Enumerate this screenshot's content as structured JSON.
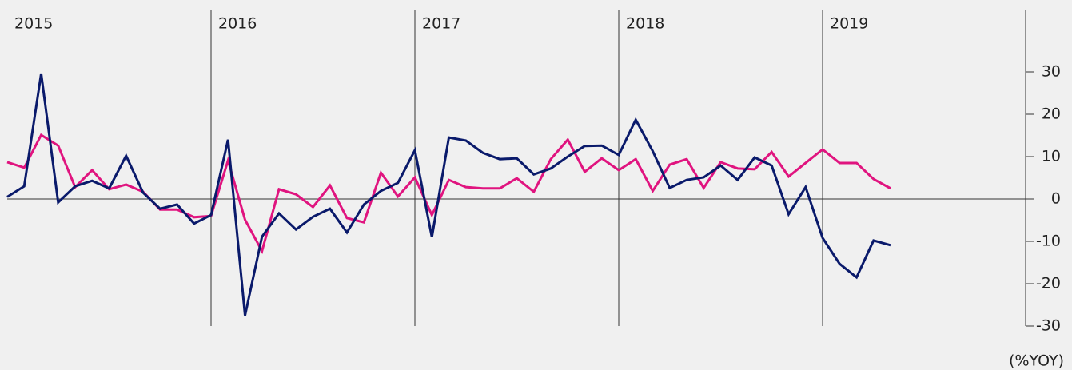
{
  "chart_data": {
    "type": "line",
    "categories": [
      "2015",
      null,
      null,
      null,
      null,
      null,
      null,
      null,
      null,
      null,
      null,
      null,
      "2016",
      null,
      null,
      null,
      null,
      null,
      null,
      null,
      null,
      null,
      null,
      null,
      "2017",
      null,
      null,
      null,
      null,
      null,
      null,
      null,
      null,
      null,
      null,
      null,
      "2018",
      null,
      null,
      null,
      null,
      null,
      null,
      null,
      null,
      null,
      null,
      null,
      "2019",
      null,
      null,
      null,
      null
    ],
    "series": [
      {
        "color": "#e0147f",
        "values": [
          8.7,
          7.4,
          15.1,
          12.6,
          2.8,
          6.8,
          2.3,
          3.4,
          1.7,
          -2.5,
          -2.5,
          -4.3,
          -4,
          9.1,
          -4.9,
          -12.3,
          2.3,
          1.1,
          -1.9,
          3.2,
          -4.5,
          -5.5,
          6.2,
          0.6,
          5.1,
          -3.8,
          4.5,
          2.8,
          2.5,
          2.5,
          4.9,
          1.7,
          9.4,
          14,
          6.4,
          9.6,
          6.8,
          9.4,
          1.9,
          8.1,
          9.4,
          2.6,
          8.7,
          7.2,
          7,
          11.1,
          5.3,
          8.5,
          11.7,
          8.5,
          8.5,
          4.7,
          2.5
        ]
      },
      {
        "color": "#0a1a6b",
        "values": [
          0.5,
          3,
          29.6,
          -0.8,
          3,
          4.3,
          2.5,
          10.2,
          1.5,
          -2.3,
          -1.3,
          -5.8,
          -3.8,
          14,
          -27.5,
          -8.9,
          -3.4,
          -7.2,
          -4.2,
          -2.3,
          -7.9,
          -1.3,
          1.9,
          3.8,
          11.5,
          -9,
          14.5,
          13.8,
          10.9,
          9.4,
          9.6,
          5.8,
          7.2,
          10,
          12.5,
          12.6,
          10.4,
          18.7,
          11.3,
          2.6,
          4.5,
          5.1,
          7.9,
          4.5,
          9.8,
          7.9,
          -3.6,
          2.8,
          -9.2,
          -15.3,
          -18.5,
          -9.8,
          -10.9
        ]
      }
    ],
    "ylim": [
      -30,
      30
    ],
    "yticks": [
      -30,
      -20,
      -10,
      0,
      10,
      20,
      30
    ],
    "y_axis_label": "(%YOY)"
  }
}
